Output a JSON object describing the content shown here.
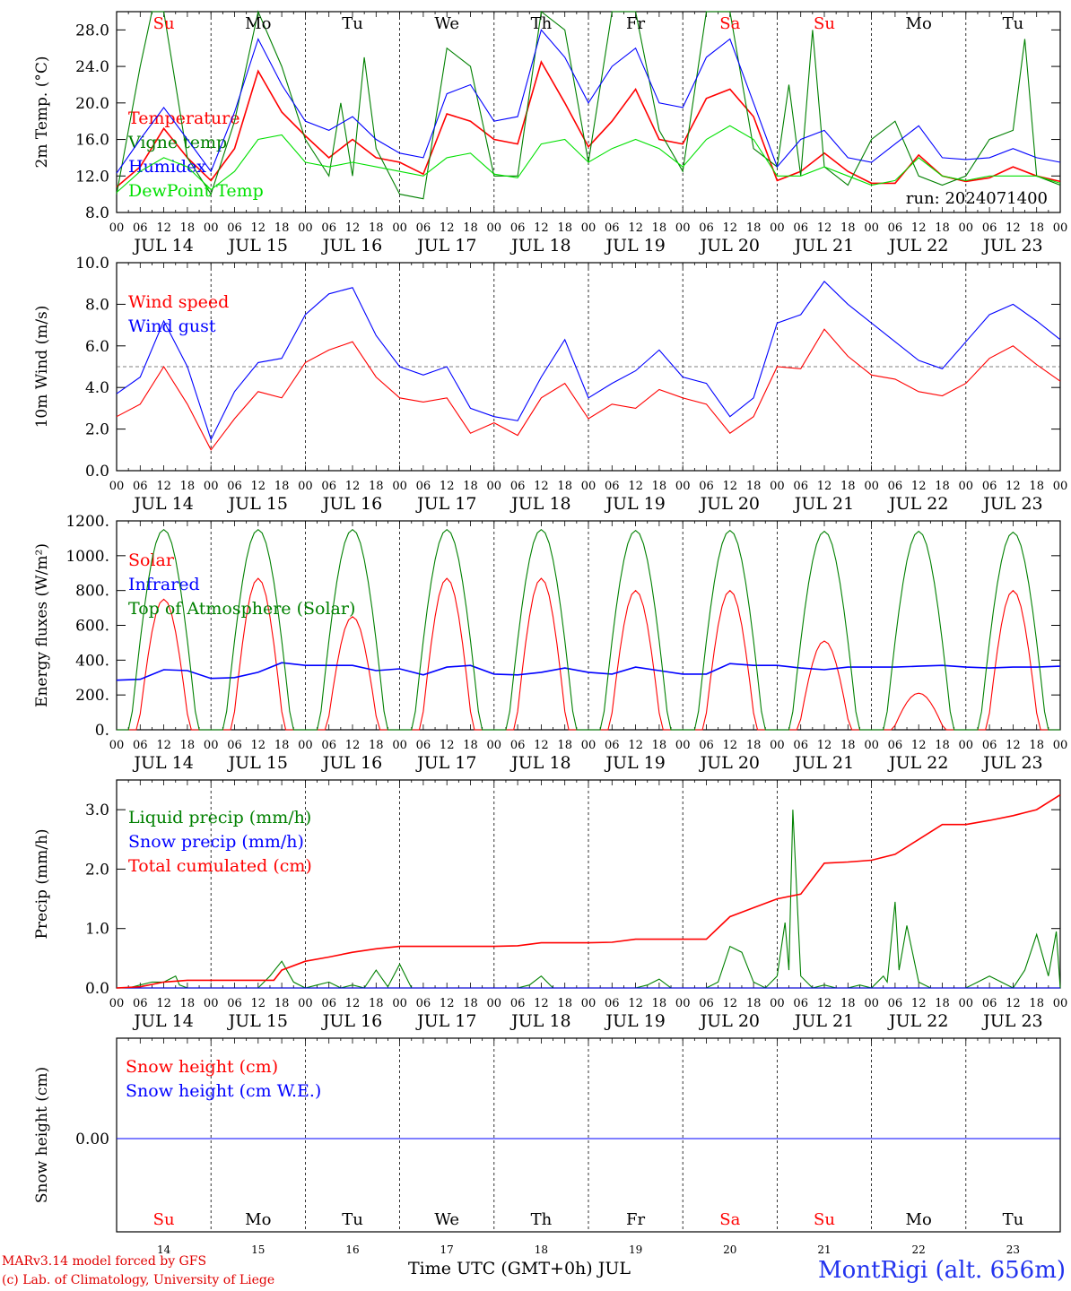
{
  "chart_data": [
    {
      "type": "line",
      "ylabel": "2m Temp. (°C)",
      "ylim": [
        8,
        30
      ],
      "yticks": [
        "8.0",
        "12.0",
        "16.0",
        "20.0",
        "24.0",
        "28.0"
      ],
      "annotation": "run: 2024071400",
      "x_unit": "hours since JUL 14 00 UTC",
      "series": [
        {
          "name": "Temperature",
          "color": "#ff0000",
          "x": [
            0,
            6,
            12,
            18,
            24,
            30,
            36,
            42,
            48,
            54,
            60,
            66,
            72,
            78,
            84,
            90,
            96,
            102,
            108,
            114,
            120,
            126,
            132,
            138,
            144,
            150,
            156,
            162,
            168,
            174,
            180,
            186,
            192,
            198,
            204,
            210,
            216,
            222,
            228,
            234,
            240
          ],
          "y": [
            10.8,
            13,
            17.2,
            14,
            11.5,
            15,
            23.5,
            19,
            16.4,
            14,
            16,
            14,
            13.5,
            12.2,
            18.8,
            18,
            16,
            15.5,
            24.5,
            20,
            15.2,
            18,
            21.5,
            16,
            15.5,
            20.5,
            21.5,
            18.5,
            11.5,
            12.5,
            14.5,
            12.5,
            11.2,
            11.2,
            14.3,
            12,
            11.4,
            11.8,
            13,
            12,
            11.4
          ]
        },
        {
          "name": "Vigne temp",
          "color": "#008000",
          "x": [
            0,
            6,
            9,
            12,
            15,
            18,
            24,
            30,
            36,
            42,
            48,
            54,
            57,
            60,
            63,
            66,
            72,
            78,
            84,
            90,
            96,
            102,
            108,
            114,
            120,
            126,
            132,
            138,
            144,
            150,
            156,
            162,
            168,
            171,
            174,
            177,
            180,
            186,
            192,
            198,
            204,
            210,
            216,
            222,
            228,
            231,
            234,
            240
          ],
          "y": [
            10,
            24,
            30,
            30,
            22,
            14,
            10,
            18,
            30,
            24,
            16,
            12,
            20,
            12,
            25,
            15,
            10,
            9.5,
            26,
            24,
            12,
            12,
            30,
            28,
            13.5,
            30,
            30,
            17,
            12.5,
            30,
            30,
            15,
            13,
            22,
            12,
            28,
            13,
            11,
            16,
            18,
            12,
            11,
            12,
            16,
            17,
            27,
            12,
            11
          ]
        },
        {
          "name": "Humidex",
          "color": "#0000ff",
          "x": [
            0,
            6,
            12,
            18,
            24,
            30,
            36,
            42,
            48,
            54,
            60,
            66,
            72,
            78,
            84,
            90,
            96,
            102,
            108,
            114,
            120,
            126,
            132,
            138,
            144,
            150,
            156,
            162,
            168,
            174,
            180,
            186,
            192,
            198,
            204,
            210,
            216,
            222,
            228,
            234,
            240
          ],
          "y": [
            12.3,
            16,
            19.5,
            16,
            12.5,
            19,
            27,
            22,
            18,
            17,
            18.5,
            16,
            14.5,
            14,
            21,
            22,
            18,
            18.5,
            28,
            25,
            20,
            24,
            26,
            20,
            19.5,
            25,
            27,
            20,
            13,
            16,
            17,
            14,
            13.5,
            15.5,
            17.5,
            14,
            13.8,
            14,
            15,
            14,
            13.5
          ]
        },
        {
          "name": "DewPoint Temp",
          "color": "#00e000",
          "x": [
            0,
            6,
            12,
            18,
            24,
            30,
            36,
            42,
            48,
            54,
            60,
            66,
            72,
            78,
            84,
            90,
            96,
            102,
            108,
            114,
            120,
            126,
            132,
            138,
            144,
            150,
            156,
            162,
            168,
            174,
            180,
            186,
            192,
            198,
            204,
            210,
            216,
            222,
            228,
            234,
            240
          ],
          "y": [
            10.2,
            12.5,
            14,
            13,
            10.5,
            12.5,
            16,
            16.5,
            13.5,
            13,
            13.5,
            13,
            12.5,
            12,
            14,
            14.5,
            12.2,
            11.8,
            15.5,
            16,
            13.5,
            15,
            16,
            15,
            13,
            16,
            17.5,
            16,
            12,
            12,
            13,
            12,
            11,
            11.5,
            14,
            12,
            11.5,
            12,
            12,
            12,
            11.2
          ]
        }
      ]
    },
    {
      "type": "line",
      "ylabel": "10m Wind (m/s)",
      "ylim": [
        0,
        10
      ],
      "yticks": [
        "0.0",
        "2.0",
        "4.0",
        "6.0",
        "8.0",
        "10.0"
      ],
      "reference_line": 5.0,
      "series": [
        {
          "name": "Wind speed",
          "color": "#ff0000",
          "x": [
            0,
            6,
            12,
            18,
            24,
            30,
            36,
            42,
            48,
            54,
            60,
            66,
            72,
            78,
            84,
            90,
            96,
            102,
            108,
            114,
            120,
            126,
            132,
            138,
            144,
            150,
            156,
            162,
            168,
            174,
            180,
            186,
            192,
            198,
            204,
            210,
            216,
            222,
            228,
            234,
            240
          ],
          "y": [
            2.6,
            3.2,
            5,
            3.2,
            1,
            2.5,
            3.8,
            3.5,
            5.2,
            5.8,
            6.2,
            4.5,
            3.5,
            3.3,
            3.5,
            1.8,
            2.3,
            1.7,
            3.5,
            4.2,
            2.5,
            3.2,
            3,
            3.9,
            3.5,
            3.2,
            1.8,
            2.6,
            5,
            4.9,
            6.8,
            5.5,
            4.6,
            4.4,
            3.8,
            3.6,
            4.2,
            5.4,
            6,
            5.1,
            4.3
          ]
        },
        {
          "name": "Wind gust",
          "color": "#0000ff",
          "x": [
            0,
            6,
            12,
            18,
            24,
            30,
            36,
            42,
            48,
            54,
            60,
            66,
            72,
            78,
            84,
            90,
            96,
            102,
            108,
            114,
            120,
            126,
            132,
            138,
            144,
            150,
            156,
            162,
            168,
            174,
            180,
            186,
            192,
            198,
            204,
            210,
            216,
            222,
            228,
            234,
            240
          ],
          "y": [
            3.7,
            4.5,
            7.2,
            5,
            1.5,
            3.8,
            5.2,
            5.4,
            7.5,
            8.5,
            8.8,
            6.5,
            5,
            4.6,
            5,
            3,
            2.6,
            2.4,
            4.5,
            6.3,
            3.5,
            4.2,
            4.8,
            5.8,
            4.5,
            4.2,
            2.6,
            3.5,
            7.1,
            7.5,
            9.1,
            8,
            7.1,
            6.2,
            5.3,
            4.9,
            6.2,
            7.5,
            8,
            7.2,
            6.3
          ]
        }
      ]
    },
    {
      "type": "line",
      "ylabel": "Energy fluxes (W/m²)",
      "ylim": [
        0,
        1200
      ],
      "yticks": [
        "0.",
        "200.",
        "400.",
        "600.",
        "800.",
        "1000.",
        "1200."
      ],
      "series": [
        {
          "name": "Solar",
          "color": "#ff0000",
          "peak_hours": [
            12,
            36,
            60,
            84,
            108,
            132,
            156,
            180,
            204,
            228
          ],
          "daily_peak": [
            750,
            870,
            650,
            870,
            870,
            800,
            800,
            510,
            210,
            800
          ]
        },
        {
          "name": "Infrared",
          "color": "#0000ff",
          "x": [
            0,
            6,
            12,
            18,
            24,
            30,
            36,
            42,
            48,
            54,
            60,
            66,
            72,
            78,
            84,
            90,
            96,
            102,
            108,
            114,
            120,
            126,
            132,
            138,
            144,
            150,
            156,
            162,
            168,
            174,
            180,
            186,
            192,
            198,
            204,
            210,
            216,
            222,
            228,
            234,
            240
          ],
          "y": [
            285,
            290,
            345,
            340,
            295,
            300,
            330,
            385,
            370,
            370,
            370,
            340,
            350,
            315,
            360,
            370,
            320,
            315,
            330,
            355,
            330,
            320,
            360,
            340,
            320,
            320,
            380,
            370,
            370,
            355,
            345,
            360,
            360,
            360,
            365,
            370,
            360,
            355,
            360,
            360,
            365
          ]
        },
        {
          "name": "Top of Atmosphere (Solar)",
          "color": "#008000",
          "peak_hours": [
            12,
            36,
            60,
            84,
            108,
            132,
            156,
            180,
            204,
            228
          ],
          "daily_peak": [
            1150,
            1150,
            1150,
            1150,
            1150,
            1145,
            1145,
            1140,
            1140,
            1135
          ]
        }
      ]
    },
    {
      "type": "line",
      "ylabel": "Precip (mm/h)",
      "ylim": [
        0,
        3.5
      ],
      "yticks": [
        "0.0",
        "1.0",
        "2.0",
        "3.0"
      ],
      "series": [
        {
          "name": "Liquid precip (mm/h)",
          "color": "#008000",
          "x": [
            0,
            3,
            6,
            9,
            12,
            15,
            16,
            18,
            21,
            24,
            27,
            30,
            33,
            36,
            39,
            42,
            45,
            48,
            51,
            54,
            57,
            60,
            63,
            66,
            69,
            72,
            75,
            78,
            81,
            84,
            87,
            90,
            93,
            96,
            99,
            102,
            105,
            108,
            111,
            114,
            117,
            120,
            123,
            126,
            129,
            132,
            135,
            138,
            141,
            144,
            147,
            150,
            153,
            156,
            159,
            162,
            165,
            168,
            170,
            171,
            172,
            174,
            177,
            180,
            183,
            186,
            189,
            192,
            195,
            196,
            198,
            199,
            201,
            204,
            207,
            210,
            213,
            216,
            219,
            222,
            225,
            228,
            231,
            234,
            237,
            239,
            240
          ],
          "y": [
            0,
            0,
            0.05,
            0.1,
            0.1,
            0.2,
            0.05,
            0,
            0,
            0,
            0,
            0,
            0,
            0,
            0.2,
            0.45,
            0.1,
            0,
            0.05,
            0.1,
            0,
            0.05,
            0,
            0.3,
            0.02,
            0.4,
            0,
            0,
            0,
            0,
            0,
            0,
            0,
            0,
            0,
            0,
            0.05,
            0.2,
            0,
            0,
            0,
            0,
            0,
            0,
            0,
            0,
            0.05,
            0.15,
            0,
            0,
            0,
            0,
            0.1,
            0.7,
            0.6,
            0.1,
            0,
            0.2,
            1.1,
            0.3,
            3.0,
            0.2,
            0,
            0.05,
            0,
            0,
            0.05,
            0,
            0.2,
            0.1,
            1.45,
            0.3,
            1.05,
            0.1,
            0,
            0,
            0,
            0,
            0.1,
            0.2,
            0.1,
            0,
            0.3,
            0.9,
            0.2,
            0.95,
            0
          ]
        },
        {
          "name": "Snow precip (mm/h)",
          "color": "#0000ff",
          "x": [
            0,
            240
          ],
          "y": [
            0,
            0
          ]
        },
        {
          "name": "Total cumulated (cm)",
          "color": "#ff0000",
          "x": [
            0,
            6,
            12,
            18,
            24,
            30,
            36,
            40,
            42,
            48,
            54,
            60,
            66,
            72,
            78,
            84,
            90,
            96,
            102,
            108,
            114,
            120,
            126,
            132,
            138,
            144,
            150,
            156,
            162,
            168,
            174,
            180,
            186,
            192,
            198,
            204,
            210,
            216,
            222,
            228,
            234,
            240
          ],
          "y": [
            0,
            0.02,
            0.1,
            0.13,
            0.13,
            0.13,
            0.13,
            0.13,
            0.3,
            0.45,
            0.52,
            0.6,
            0.66,
            0.7,
            0.7,
            0.7,
            0.7,
            0.7,
            0.71,
            0.76,
            0.76,
            0.76,
            0.77,
            0.82,
            0.82,
            0.82,
            0.82,
            1.2,
            1.35,
            1.5,
            1.58,
            2.1,
            2.12,
            2.15,
            2.25,
            2.5,
            2.75,
            2.75,
            2.82,
            2.9,
            3.0,
            3.25
          ]
        }
      ]
    },
    {
      "type": "line",
      "ylabel": "Snow height (cm)",
      "yticks": [
        "0.00"
      ],
      "series": [
        {
          "name": "Snow height (cm)",
          "color": "#ff0000",
          "x": [
            0,
            240
          ],
          "y": [
            0,
            0
          ]
        },
        {
          "name": "Snow height (cm W.E.)",
          "color": "#0000ff",
          "x": [
            0,
            240
          ],
          "y": [
            0,
            0
          ]
        }
      ]
    }
  ],
  "axis": {
    "hour_labels": [
      "00",
      "06",
      "12",
      "18"
    ],
    "date_labels": [
      "JUL 14",
      "JUL 15",
      "JUL 16",
      "JUL 17",
      "JUL 18",
      "JUL 19",
      "JUL 20",
      "JUL 21",
      "JUL 22",
      "JUL 23"
    ],
    "weekdays": [
      {
        "name": "Su",
        "color": "#ff0000"
      },
      {
        "name": "Mo",
        "color": "#000000"
      },
      {
        "name": "Tu",
        "color": "#000000"
      },
      {
        "name": "We",
        "color": "#000000"
      },
      {
        "name": "Th",
        "color": "#000000"
      },
      {
        "name": "Fr",
        "color": "#000000"
      },
      {
        "name": "Sa",
        "color": "#ff0000"
      },
      {
        "name": "Su",
        "color": "#ff0000"
      },
      {
        "name": "Mo",
        "color": "#000000"
      },
      {
        "name": "Tu",
        "color": "#000000"
      }
    ],
    "day_numbers": [
      "14",
      "15",
      "16",
      "17",
      "18",
      "19",
      "20",
      "21",
      "22",
      "23"
    ]
  },
  "footer": {
    "model_line": "MARv3.14 model forced by GFS",
    "credit_line": "(c) Lab. of Climatology, University of Liege",
    "time_axis_label": "Time UTC (GMT+0h) JUL",
    "station": "MontRigi (alt. 656m)"
  }
}
